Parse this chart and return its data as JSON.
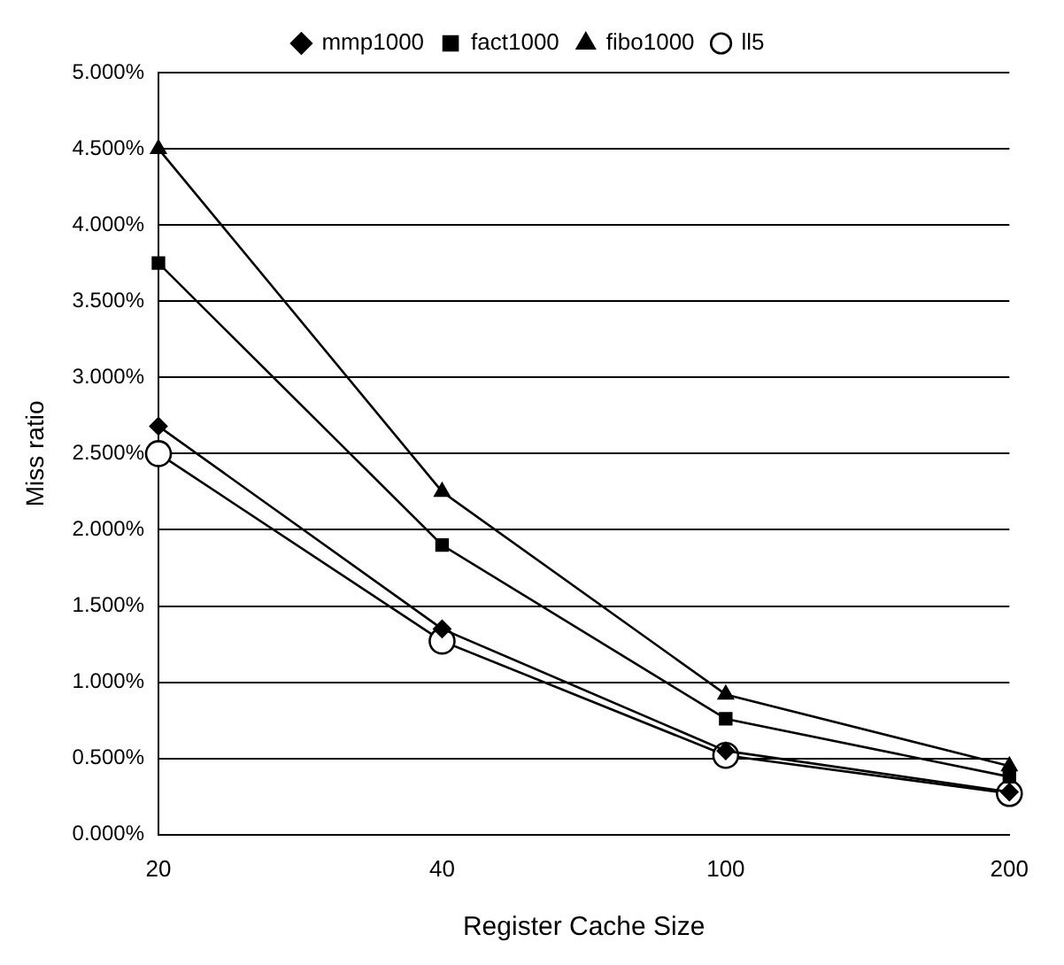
{
  "chart_data": {
    "type": "line",
    "xlabel": "Register Cache Size",
    "ylabel": "Miss ratio",
    "categories": [
      "20",
      "40",
      "100",
      "200"
    ],
    "series": [
      {
        "name": "mmp1000",
        "color": "#000000",
        "marker": "diamond",
        "values": [
          2.68,
          1.35,
          0.55,
          0.28
        ]
      },
      {
        "name": "fact1000",
        "color": "#000000",
        "marker": "square",
        "values": [
          3.75,
          1.9,
          0.76,
          0.38
        ]
      },
      {
        "name": "fibo1000",
        "color": "#000000",
        "marker": "triangle",
        "values": [
          4.5,
          2.25,
          0.92,
          0.45
        ]
      },
      {
        "name": "ll5",
        "color": "#000000",
        "marker": "circle",
        "values": [
          2.5,
          1.27,
          0.52,
          0.27
        ]
      }
    ],
    "ylim": [
      0,
      5
    ],
    "yticks": [
      {
        "value": 0,
        "label": "0.000%"
      },
      {
        "value": 0.5,
        "label": "0.500%"
      },
      {
        "value": 1,
        "label": "1.000%"
      },
      {
        "value": 1.5,
        "label": "1.500%"
      },
      {
        "value": 2,
        "label": "2.000%"
      },
      {
        "value": 2.5,
        "label": "2.500%"
      },
      {
        "value": 3,
        "label": "3.000%"
      },
      {
        "value": 3.5,
        "label": "3.500%"
      },
      {
        "value": 4,
        "label": "4.000%"
      },
      {
        "value": 4.5,
        "label": "4.500%"
      },
      {
        "value": 5,
        "label": "5.000%"
      }
    ],
    "grid": "y",
    "legend": "top",
    "line_style": "solid"
  }
}
